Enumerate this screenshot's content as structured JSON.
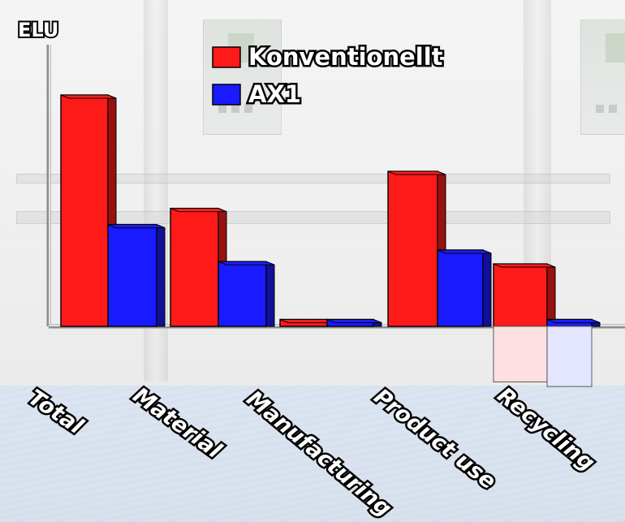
{
  "chart_data": {
    "type": "bar",
    "yaxis_label": "ELU",
    "categories": [
      "Total",
      "Material",
      "Manufacturing",
      "Product use",
      "Recycling"
    ],
    "series": [
      {
        "name": "Konventionellt",
        "color": "#ff1a1a",
        "values": [
          100,
          51,
          3,
          67,
          27
        ]
      },
      {
        "name": "AX1",
        "color": "#1a1aff",
        "values": [
          44,
          28,
          3,
          33,
          3
        ]
      }
    ],
    "reflection": {
      "Konventionellt": -24,
      "AX1": -26
    },
    "ylim": [
      -27,
      102
    ],
    "grid": false,
    "legend_position": "top-center",
    "colors": {
      "series_1": "#ff1a1a",
      "series_2": "#1a1aff",
      "axis": "#c7c7c7",
      "text": "#ffffff",
      "outline": "#000000"
    }
  }
}
